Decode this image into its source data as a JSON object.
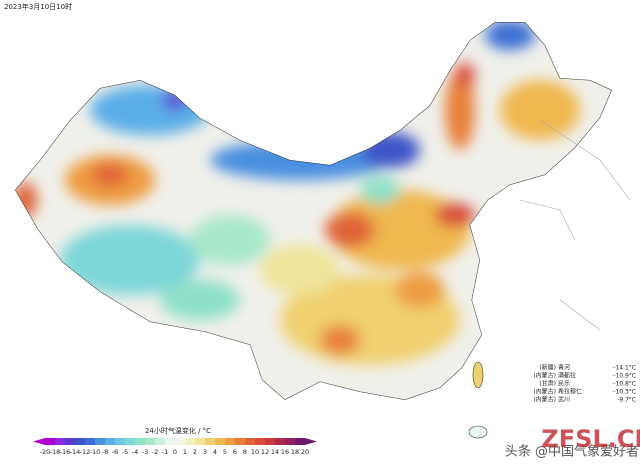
{
  "header": {
    "timestamp": "2023年3月10日10时"
  },
  "colorbar": {
    "label": "24小时气温变化 / °C",
    "ticks": [
      -20,
      -18,
      -16,
      -14,
      -12,
      -10,
      -8,
      -6,
      -5,
      -4,
      -3,
      -2,
      -1,
      0,
      1,
      2,
      3,
      4,
      5,
      6,
      8,
      10,
      12,
      14,
      16,
      18,
      20
    ],
    "colors": [
      "#b000d0",
      "#8a2be2",
      "#5a3ad0",
      "#3d54c8",
      "#3b6fd4",
      "#4a8fe0",
      "#5aaee8",
      "#6cc6e6",
      "#7dd6d8",
      "#8ee0c8",
      "#a8e8c8",
      "#c8f0dc",
      "#eaf6ee",
      "#f4f4ec",
      "#f2f0c0",
      "#efe49a",
      "#f0d070",
      "#f0b850",
      "#ee9c40",
      "#e8803a",
      "#e06438",
      "#d84a3a",
      "#c8383e",
      "#b02a48",
      "#902060",
      "#701870"
    ]
  },
  "stations": [
    {
      "region": "(新疆)",
      "name": "青河",
      "value": "-14.1°C"
    },
    {
      "region": "(内蒙古)",
      "name": "满都拉",
      "value": "-10.9°C"
    },
    {
      "region": "(甘肃)",
      "name": "民乐",
      "value": "-10.8°C"
    },
    {
      "region": "(内蒙古)",
      "name": "希拉穆仁",
      "value": "-10.3°C"
    },
    {
      "region": "(内蒙古)",
      "name": "武川",
      "value": "-9.7°C"
    }
  ],
  "watermark": {
    "source": "头条 @中国气象爱好者",
    "logo": "ZFSL.CN"
  }
}
